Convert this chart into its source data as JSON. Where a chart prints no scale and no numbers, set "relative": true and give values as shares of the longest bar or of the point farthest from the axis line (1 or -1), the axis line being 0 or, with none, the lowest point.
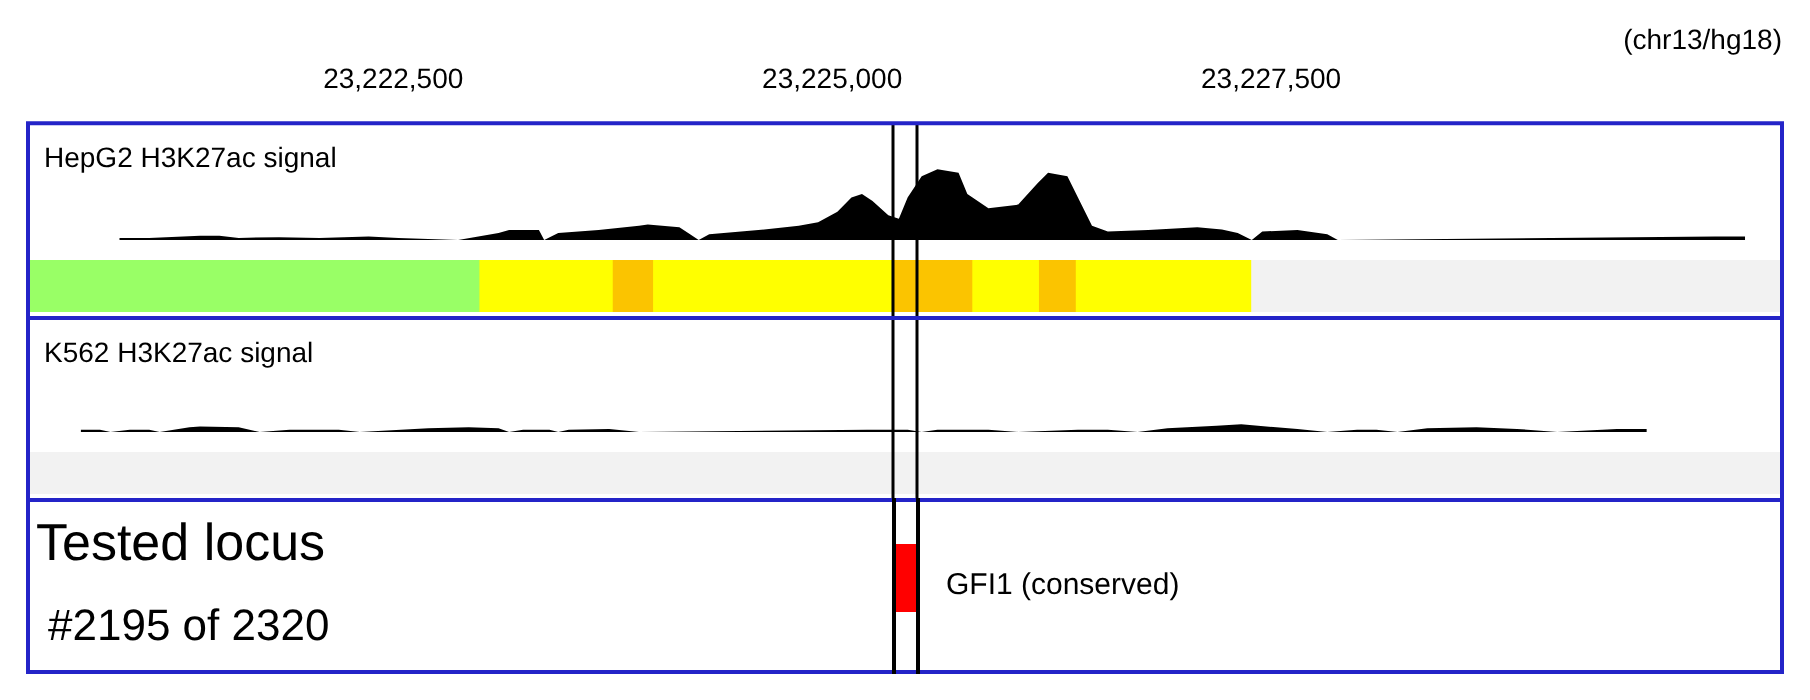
{
  "chart_data": [
    {
      "type": "area",
      "title": "HepG2 H3K27ac signal",
      "xlabel": "(chr13/hg18)",
      "relative": true,
      "color": "#000000",
      "tick_labels": "x",
      "xlim": [
        23220420,
        23230410
      ],
      "xticks": [
        {
          "value": 23222500,
          "label": "23,222,500"
        },
        {
          "value": 23225000,
          "label": "23,225,000"
        },
        {
          "value": 23227500,
          "label": "23,227,500"
        }
      ],
      "x": [
        23220940,
        23221110,
        23221400,
        23221510,
        23221620,
        23221850,
        23222080,
        23222360,
        23222530,
        23222870,
        23223100,
        23223160,
        23223330,
        23223360,
        23223440,
        23223670,
        23223900,
        23223950,
        23224130,
        23224180,
        23224240,
        23224300,
        23224580,
        23224810,
        23224920,
        23225030,
        23225110,
        23225170,
        23225230,
        23225320,
        23225380,
        23225430,
        23225510,
        23225600,
        23225720,
        23225770,
        23225890,
        23226060,
        23226170,
        23226230,
        23226340,
        23226400,
        23226480,
        23226570,
        23226800,
        23227080,
        23227220,
        23227310,
        23227390,
        23227450,
        23227650,
        23227820,
        23227880,
        23230030,
        23230200
      ],
      "values": [
        0.03,
        0.03,
        0.06,
        0.06,
        0.03,
        0.04,
        0.03,
        0.05,
        0.03,
        0,
        0.1,
        0.14,
        0.14,
        0,
        0.1,
        0.14,
        0.2,
        0.22,
        0.18,
        0.1,
        0,
        0.08,
        0.14,
        0.2,
        0.25,
        0.4,
        0.6,
        0.65,
        0.55,
        0.35,
        0.3,
        0.6,
        0.9,
        1,
        0.95,
        0.65,
        0.45,
        0.5,
        0.8,
        0.95,
        0.9,
        0.6,
        0.2,
        0.12,
        0.14,
        0.18,
        0.15,
        0.1,
        0,
        0.12,
        0.14,
        0.08,
        0,
        0.05,
        0.05
      ],
      "ref_lines": [
        {
          "axis": "x",
          "value": 23225340,
          "color": "#000000"
        },
        {
          "axis": "x",
          "value": 23225480,
          "color": "#000000"
        }
      ]
    },
    {
      "type": "bar",
      "orientation": "horizontal",
      "stacked": true,
      "relative": true,
      "categories": [
        null
      ],
      "series": [
        {
          "color": "#99ff66",
          "values": [
            0.257
          ]
        },
        {
          "color": "#ffff00",
          "values": [
            0.076
          ]
        },
        {
          "color": "#fbc400",
          "values": [
            0.023
          ]
        },
        {
          "color": "#ffff00",
          "values": [
            0.136
          ]
        },
        {
          "color": "#fbc400",
          "values": [
            0.046
          ]
        },
        {
          "color": "#ffff00",
          "values": [
            0.038
          ]
        },
        {
          "color": "#fbc400",
          "values": [
            0.021
          ]
        },
        {
          "color": "#ffff00",
          "values": [
            0.1
          ]
        },
        {
          "color": "#f2f2f2",
          "values": [
            0.303
          ]
        }
      ],
      "ref_lines": [
        {
          "axis": "x",
          "value": 0.4925,
          "color": "#000000"
        },
        {
          "axis": "x",
          "value": 0.5065,
          "color": "#000000"
        }
      ]
    },
    {
      "type": "area",
      "title": "K562 H3K27ac signal",
      "relative": true,
      "color": "#000000",
      "tick_labels": false,
      "xlim": [
        23220420,
        23230410
      ],
      "x": [
        23220720,
        23220830,
        23220890,
        23221000,
        23221110,
        23221170,
        23221340,
        23221400,
        23221620,
        23221740,
        23221910,
        23222190,
        23222310,
        23222700,
        23222930,
        23223100,
        23223160,
        23223240,
        23223390,
        23223440,
        23223500,
        23223730,
        23223900,
        23225200,
        23225430,
        23225510,
        23225600,
        23225890,
        23226060,
        23226400,
        23226570,
        23226740,
        23226910,
        23227190,
        23227330,
        23227530,
        23227650,
        23227820,
        23227990,
        23228100,
        23228220,
        23228390,
        23228670,
        23228900,
        23229130,
        23229470,
        23229640
      ],
      "values": [
        0.3,
        0.3,
        0,
        0.3,
        0.3,
        0,
        0.6,
        0.7,
        0.6,
        0,
        0.3,
        0.3,
        0,
        0.5,
        0.6,
        0.5,
        0,
        0.3,
        0.3,
        0,
        0.3,
        0.4,
        0,
        0.3,
        0.3,
        0,
        0.3,
        0.3,
        0,
        0.3,
        0.3,
        0,
        0.5,
        0.8,
        1,
        0.6,
        0.4,
        0,
        0.3,
        0.3,
        0,
        0.5,
        0.6,
        0.4,
        0,
        0.4,
        0.4
      ],
      "ref_lines": [
        {
          "axis": "x",
          "value": 23225340,
          "color": "#000000"
        },
        {
          "axis": "x",
          "value": 23225480,
          "color": "#000000"
        }
      ]
    },
    {
      "type": "bar",
      "orientation": "horizontal",
      "relative": true,
      "categories": [
        null
      ],
      "values": [
        1
      ],
      "color": "#f2f2f2",
      "ref_lines": [
        {
          "axis": "x",
          "value": 0.4925,
          "color": "#000000"
        },
        {
          "axis": "x",
          "value": 0.5065,
          "color": "#000000"
        }
      ]
    },
    {
      "type": "other",
      "title": "Tested locus",
      "subtitle": "#2195 of 2320",
      "annotations": [
        "GFI1 (conserved)"
      ]
    }
  ]
}
